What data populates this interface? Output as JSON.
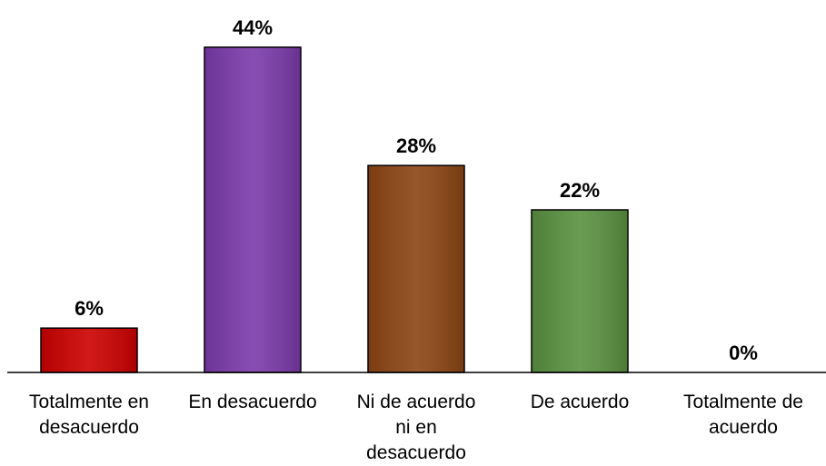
{
  "chart_data": {
    "type": "bar",
    "categories": [
      [
        "Totalmente en",
        "desacuerdo"
      ],
      [
        "En desacuerdo"
      ],
      [
        "Ni de acuerdo",
        "ni en",
        "desacuerdo"
      ],
      [
        "De acuerdo"
      ],
      [
        "Totalmente de",
        "acuerdo"
      ]
    ],
    "values": [
      6,
      44,
      28,
      22,
      0
    ],
    "value_labels": [
      "6%",
      "44%",
      "28%",
      "22%",
      "0%"
    ],
    "ylim": [
      0,
      44
    ],
    "colors": [
      "#cc0000",
      "#7b3aaa",
      "#8b4513",
      "#5a9140",
      "#ffffff"
    ],
    "grid": false,
    "legend": "none"
  }
}
